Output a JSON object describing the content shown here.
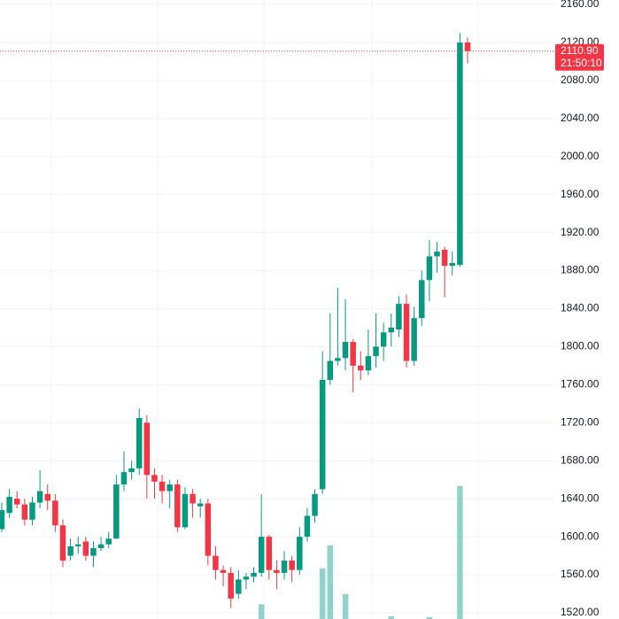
{
  "chart_data": {
    "type": "candlestick",
    "open": [
      1608,
      1625,
      1640,
      1634,
      1618,
      1636,
      1645,
      1638,
      1612,
      1580,
      1590,
      1595,
      1580,
      1588,
      1592,
      1598,
      1655,
      1668,
      1672,
      1720,
      1665,
      1658,
      1648,
      1655,
      1610,
      1645,
      1632,
      1635,
      1580,
      1565,
      1562,
      1540,
      1555,
      1558,
      1562,
      1600,
      1565,
      1562,
      1575,
      1565,
      1600,
      1622,
      1650,
      1765,
      1785,
      1788,
      1805,
      1780,
      1775,
      1790,
      1800,
      1815,
      1818,
      1845,
      1785,
      1830,
      1870,
      1895,
      1902,
      1885,
      1886,
      2120
    ],
    "high": [
      1636,
      1650,
      1648,
      1640,
      1642,
      1670,
      1655,
      1645,
      1618,
      1598,
      1600,
      1600,
      1595,
      1600,
      1605,
      1665,
      1690,
      1680,
      1735,
      1728,
      1672,
      1665,
      1660,
      1660,
      1652,
      1650,
      1640,
      1640,
      1590,
      1570,
      1568,
      1565,
      1562,
      1568,
      1645,
      1602,
      1575,
      1585,
      1580,
      1610,
      1630,
      1650,
      1795,
      1835,
      1862,
      1850,
      1808,
      1795,
      1818,
      1835,
      1825,
      1835,
      1853,
      1855,
      1842,
      1880,
      1912,
      1910,
      1905,
      1900,
      2130,
      2125
    ],
    "low": [
      1605,
      1620,
      1630,
      1612,
      1612,
      1630,
      1628,
      1605,
      1568,
      1575,
      1582,
      1575,
      1568,
      1585,
      1588,
      1598,
      1648,
      1660,
      1665,
      1640,
      1640,
      1635,
      1630,
      1605,
      1608,
      1620,
      1620,
      1570,
      1555,
      1548,
      1525,
      1535,
      1545,
      1552,
      1558,
      1555,
      1545,
      1555,
      1552,
      1560,
      1595,
      1615,
      1645,
      1760,
      1780,
      1775,
      1752,
      1765,
      1770,
      1778,
      1785,
      1800,
      1810,
      1778,
      1780,
      1822,
      1848,
      1878,
      1852,
      1875,
      1884,
      2098
    ],
    "close": [
      1628,
      1642,
      1634,
      1618,
      1636,
      1648,
      1638,
      1612,
      1575,
      1590,
      1592,
      1580,
      1588,
      1592,
      1598,
      1655,
      1668,
      1672,
      1725,
      1665,
      1658,
      1648,
      1655,
      1610,
      1645,
      1635,
      1635,
      1580,
      1565,
      1562,
      1535,
      1555,
      1558,
      1562,
      1600,
      1565,
      1562,
      1575,
      1565,
      1600,
      1622,
      1645,
      1765,
      1785,
      1788,
      1805,
      1780,
      1775,
      1790,
      1800,
      1815,
      1820,
      1845,
      1785,
      1830,
      1870,
      1895,
      1900,
      1885,
      1888,
      2120,
      2110.9
    ],
    "volume": [
      null,
      null,
      null,
      null,
      null,
      null,
      null,
      null,
      null,
      null,
      null,
      null,
      null,
      null,
      null,
      null,
      null,
      null,
      null,
      null,
      null,
      null,
      null,
      null,
      null,
      null,
      null,
      null,
      null,
      null,
      null,
      null,
      null,
      null,
      16,
      null,
      null,
      null,
      null,
      null,
      null,
      null,
      55,
      80,
      null,
      27,
      null,
      null,
      null,
      null,
      null,
      3,
      null,
      null,
      null,
      null,
      2,
      null,
      null,
      null,
      144,
      null
    ],
    "up_color": "#089981",
    "down_color": "#f23645",
    "volume_color": "#26a69a",
    "ylim": [
      1520,
      2160
    ],
    "yticks": [
      {
        "value": 1520,
        "label": "1520.00"
      },
      {
        "value": 1560,
        "label": "1560.00"
      },
      {
        "value": 1600,
        "label": "1600.00"
      },
      {
        "value": 1640,
        "label": "1640.00"
      },
      {
        "value": 1680,
        "label": "1680.00"
      },
      {
        "value": 1720,
        "label": "1720.00"
      },
      {
        "value": 1760,
        "label": "1760.00"
      },
      {
        "value": 1800,
        "label": "1800.00"
      },
      {
        "value": 1840,
        "label": "1840.00"
      },
      {
        "value": 1880,
        "label": "1880.00"
      },
      {
        "value": 1920,
        "label": "1920.00"
      },
      {
        "value": 1960,
        "label": "1960.00"
      },
      {
        "value": 2000,
        "label": "2000.00"
      },
      {
        "value": 2040,
        "label": "2040.00"
      },
      {
        "value": 2080,
        "label": "2080.00"
      },
      {
        "value": 2120,
        "label": "2120.00"
      },
      {
        "value": 2160,
        "label": "2160.00"
      }
    ],
    "last_price": {
      "value": 2110.9,
      "label": "2110.90"
    },
    "countdown": "21:50:10",
    "grid": true
  }
}
